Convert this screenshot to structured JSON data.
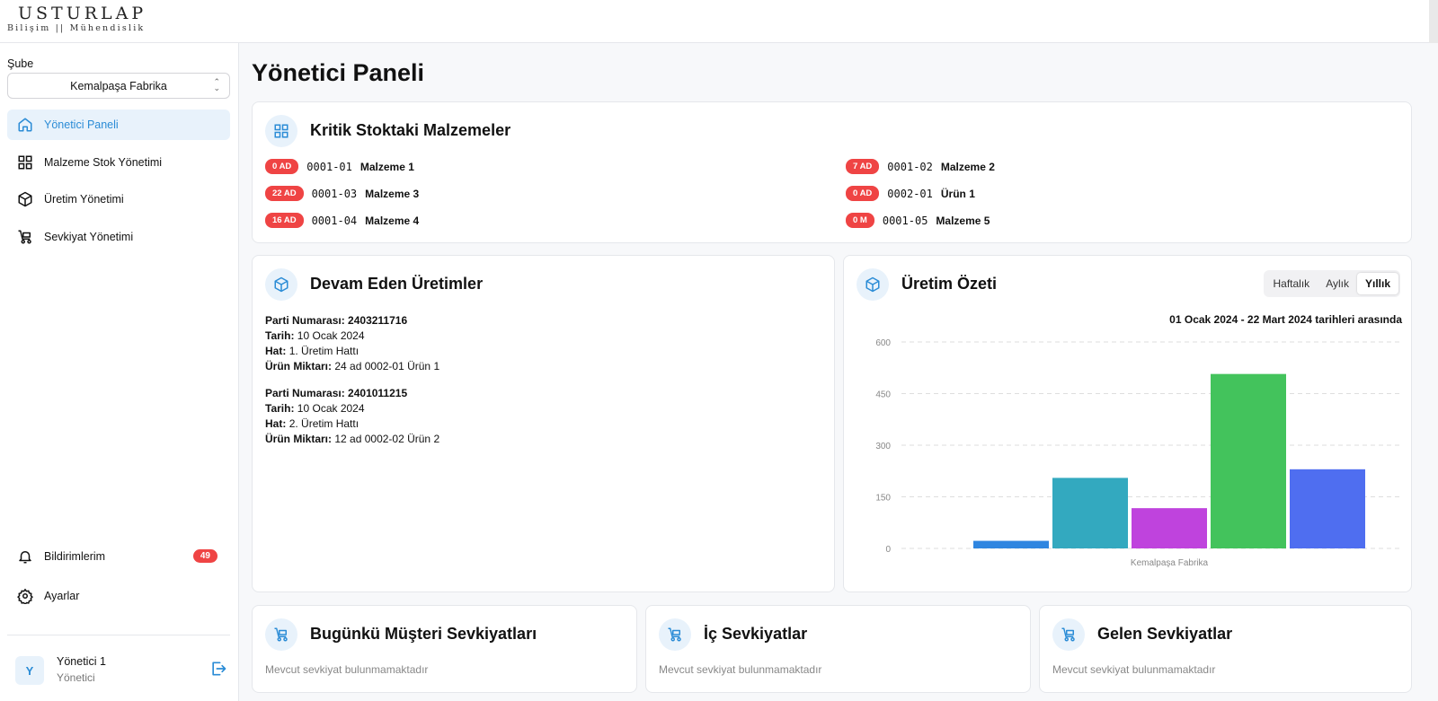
{
  "brand": {
    "name": "USTURLAP",
    "tagline": "Bilişim || Mühendislik"
  },
  "sidebar": {
    "branch_label": "Şube",
    "branch_value": "Kemalpaşa Fabrika",
    "nav": [
      {
        "label": "Yönetici Paneli",
        "icon": "home-icon",
        "active": true
      },
      {
        "label": "Malzeme Stok Yönetimi",
        "icon": "grid-icon"
      },
      {
        "label": "Üretim Yönetimi",
        "icon": "box-icon"
      },
      {
        "label": "Sevkiyat Yönetimi",
        "icon": "cart-icon"
      }
    ],
    "notifications": {
      "label": "Bildirimlerim",
      "count": "49",
      "icon": "bell-icon"
    },
    "settings": {
      "label": "Ayarlar",
      "icon": "gear-icon"
    },
    "user": {
      "initial": "Y",
      "name": "Yönetici 1",
      "role": "Yönetici"
    }
  },
  "page": {
    "title": "Yönetici Paneli"
  },
  "critical_stock": {
    "title": "Kritik Stoktaki Malzemeler",
    "items": [
      {
        "qty": "0 AD",
        "code": "0001-01",
        "name": "Malzeme 1"
      },
      {
        "qty": "7 AD",
        "code": "0001-02",
        "name": "Malzeme 2"
      },
      {
        "qty": "22 AD",
        "code": "0001-03",
        "name": "Malzeme 3"
      },
      {
        "qty": "0 AD",
        "code": "0002-01",
        "name": "Ürün 1"
      },
      {
        "qty": "16 AD",
        "code": "0001-04",
        "name": "Malzeme 4"
      },
      {
        "qty": "0 M",
        "code": "0001-05",
        "name": "Malzeme 5"
      }
    ]
  },
  "ongoing_production": {
    "title": "Devam Eden Üretimler",
    "labels": {
      "batch": "Parti Numarası:",
      "date": "Tarih:",
      "line": "Hat:",
      "amount": "Ürün Miktarı:"
    },
    "items": [
      {
        "batch": "2403211716",
        "date": "10 Ocak 2024",
        "line": "1. Üretim Hattı",
        "amount": "24 ad 0002-01 Ürün 1"
      },
      {
        "batch": "2401011215",
        "date": "10 Ocak 2024",
        "line": "2. Üretim Hattı",
        "amount": "12 ad 0002-02 Ürün 2"
      }
    ]
  },
  "production_summary": {
    "title": "Üretim Özeti",
    "tabs": [
      "Haftalık",
      "Aylık",
      "Yıllık"
    ],
    "selected_tab": "Yıllık",
    "date_range": "01 Ocak 2024 - 22 Mart 2024 tarihleri arasında"
  },
  "chart_data": {
    "type": "bar",
    "categories": [
      "Kemalpaşa Fabrika"
    ],
    "xlabel": "Kemalpaşa Fabrika",
    "ylim": [
      0,
      600
    ],
    "yticks": [
      0,
      150,
      300,
      450,
      600
    ],
    "grid": true,
    "series": [
      {
        "values": [
          22
        ],
        "color": "#2f86e0"
      },
      {
        "values": [
          205
        ],
        "color": "#33a9bf"
      },
      {
        "values": [
          117
        ],
        "color": "#bf43dd"
      },
      {
        "values": [
          507
        ],
        "color": "#43c35c"
      },
      {
        "values": [
          230
        ],
        "color": "#4f6ef0"
      }
    ]
  },
  "shipments": [
    {
      "title": "Bugünkü Müşteri Sevkiyatları",
      "empty": "Mevcut sevkiyat bulunmamaktadır"
    },
    {
      "title": "İç Sevkiyatlar",
      "empty": "Mevcut sevkiyat bulunmamaktadır"
    },
    {
      "title": "Gelen Sevkiyatlar",
      "empty": "Mevcut sevkiyat bulunmamaktadır"
    }
  ],
  "colors": {
    "accent": "#2b8cd6",
    "danger": "#ef4444"
  }
}
